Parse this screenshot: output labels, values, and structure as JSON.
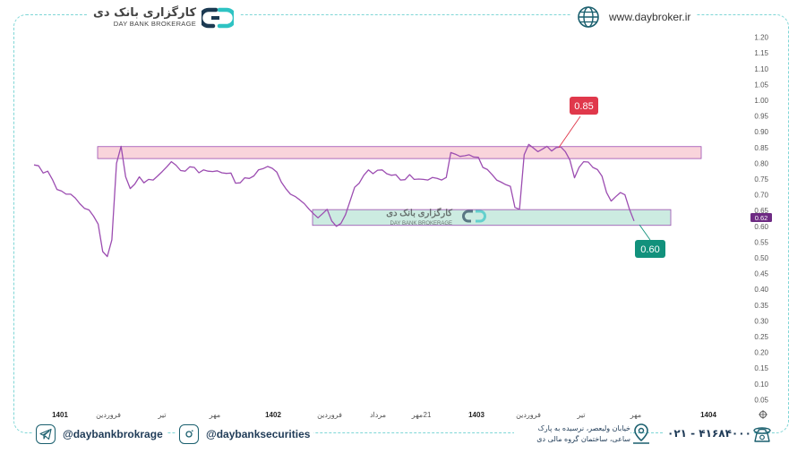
{
  "header": {
    "brand_fa": "کارگزاری بانک دی",
    "brand_en": "DAY BANK BROKERAGE",
    "website": "www.daybroker.ir"
  },
  "footer": {
    "telegram": "@daybankbrokrage",
    "instagram": "@daybanksecurities",
    "address_line1": "خیابان ولیعصر، نرسیده به پارک",
    "address_line2": "ساعی، ساختمان گروه مالی دی",
    "phone": "۰۲۱ - ۴۱۶۸۴۰۰۰"
  },
  "colors": {
    "line": "#9c4db1",
    "resistance_zone": "#f8c9d2",
    "support_zone": "#bfe6da",
    "callout_red": "#e0384b",
    "callout_green": "#12917c",
    "accent": "#2ec3c3"
  },
  "chart_data": {
    "type": "line",
    "y_ticks": [
      "1.20",
      "1.15",
      "1.10",
      "1.05",
      "1.00",
      "0.95",
      "0.90",
      "0.85",
      "0.80",
      "0.75",
      "0.70",
      "0.65",
      "0.60",
      "0.55",
      "0.50",
      "0.45",
      "0.40",
      "0.35",
      "0.30",
      "0.25",
      "0.20",
      "0.15",
      "0.10",
      "0.05"
    ],
    "ylim": [
      0.0,
      1.22
    ],
    "x_ticks": [
      {
        "label": "1401",
        "bold": true
      },
      {
        "label": "فروردین",
        "bold": false
      },
      {
        "label": "تیر",
        "bold": false
      },
      {
        "label": "مهر",
        "bold": false
      },
      {
        "label": "1402",
        "bold": true
      },
      {
        "label": "فروردین",
        "bold": false
      },
      {
        "label": "مرداد",
        "bold": false
      },
      {
        "label": "مهر",
        "bold": false
      },
      {
        "label": "21",
        "bold": false
      },
      {
        "label": "1403",
        "bold": true
      },
      {
        "label": "فروردین",
        "bold": false
      },
      {
        "label": "تیر",
        "bold": false
      },
      {
        "label": "مهر",
        "bold": false
      },
      {
        "label": "1404",
        "bold": true
      }
    ],
    "last_price": "0.62",
    "resistance_zone": [
      0.815,
      0.853
    ],
    "support_zone": [
      0.603,
      0.653
    ],
    "callouts": [
      {
        "label": "0.85",
        "color": "red"
      },
      {
        "label": "0.60",
        "color": "green"
      }
    ],
    "series": [
      {
        "values": [
          0.795,
          0.788,
          0.772,
          0.775,
          0.745,
          0.72,
          0.712,
          0.698,
          0.705,
          0.69,
          0.668,
          0.66,
          0.652,
          0.628,
          0.61,
          0.52,
          0.5,
          0.56,
          0.8,
          0.85,
          0.76,
          0.72,
          0.73,
          0.76,
          0.738,
          0.745,
          0.75,
          0.76,
          0.77,
          0.792,
          0.805,
          0.79,
          0.78,
          0.775,
          0.785,
          0.79,
          0.77,
          0.775,
          0.778,
          0.774,
          0.772,
          0.773,
          0.768,
          0.765,
          0.74,
          0.738,
          0.75,
          0.755,
          0.76,
          0.775,
          0.786,
          0.79,
          0.78,
          0.775,
          0.74,
          0.715,
          0.705,
          0.695,
          0.68,
          0.675,
          0.655,
          0.636,
          0.63,
          0.64,
          0.65,
          0.62,
          0.6,
          0.605,
          0.64,
          0.68,
          0.72,
          0.74,
          0.762,
          0.775,
          0.77,
          0.778,
          0.775,
          0.77,
          0.762,
          0.76,
          0.75,
          0.748,
          0.76,
          0.752,
          0.75,
          0.745,
          0.75,
          0.755,
          0.748,
          0.75,
          0.755,
          0.83,
          0.832,
          0.822,
          0.82,
          0.83,
          0.82,
          0.815,
          0.79,
          0.78,
          0.76,
          0.75,
          0.74,
          0.728,
          0.73,
          0.66,
          0.65,
          0.83,
          0.86,
          0.845,
          0.84,
          0.845,
          0.85,
          0.842,
          0.85,
          0.848,
          0.84,
          0.81,
          0.75,
          0.79,
          0.805,
          0.8,
          0.79,
          0.78,
          0.755,
          0.71,
          0.68,
          0.69,
          0.71,
          0.7,
          0.65,
          0.62
        ]
      }
    ]
  }
}
